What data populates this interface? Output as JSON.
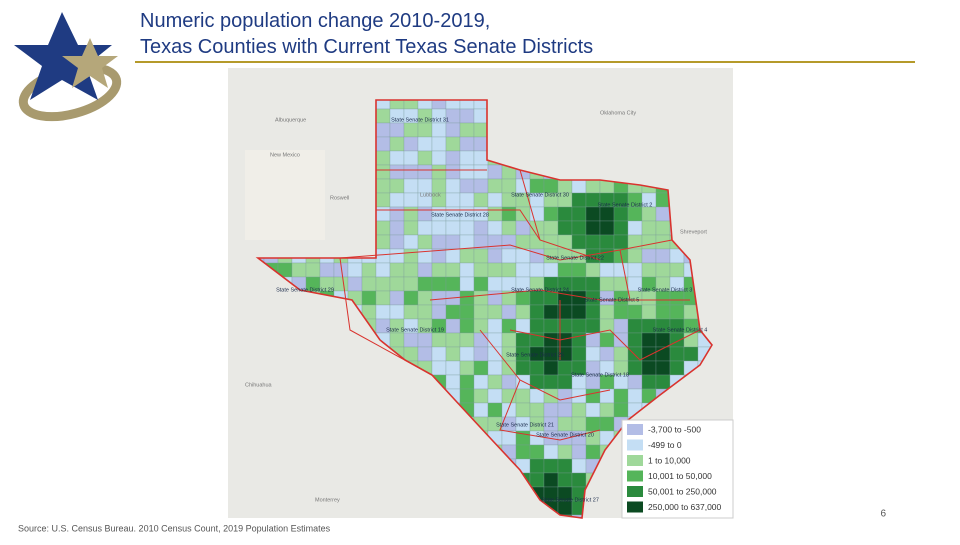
{
  "title": "Numeric population change 2010-2019, Texas Counties with Current Texas Senate Districts",
  "source": "Source: U.S. Census Bureau. 2010 Census Count, 2019 Population Estimates",
  "page_number": "6",
  "map": {
    "legend": [
      {
        "label": "-3,700 to -500",
        "color": "#b3bde6"
      },
      {
        "label": "-499 to 0",
        "color": "#c4def4"
      },
      {
        "label": "1 to 10,000",
        "color": "#9fd89a"
      },
      {
        "label": "10,001 to 50,000",
        "color": "#55b55a"
      },
      {
        "label": "50,001 to 250,000",
        "color": "#2a8a3d"
      },
      {
        "label": "250,000 to 637,000",
        "color": "#0b4a22"
      }
    ],
    "districts": [
      "State Senate District 31",
      "State Senate District 28",
      "State Senate District 30",
      "State Senate District 2",
      "State Senate District 22",
      "State Senate District 24",
      "State Senate District 29",
      "State Senate District 19",
      "State Senate District 25",
      "State Senate District 18",
      "State Senate District 21",
      "State Senate District 20",
      "State Senate District 27",
      "State Senate District 3",
      "State Senate District 4",
      "State Senate District 5"
    ],
    "places": [
      "New Mexico",
      "Oklahoma City",
      "Albuquerque",
      "Roswell",
      "Shreveport",
      "Chihuahua",
      "Lubbock",
      "Monterrey"
    ]
  }
}
